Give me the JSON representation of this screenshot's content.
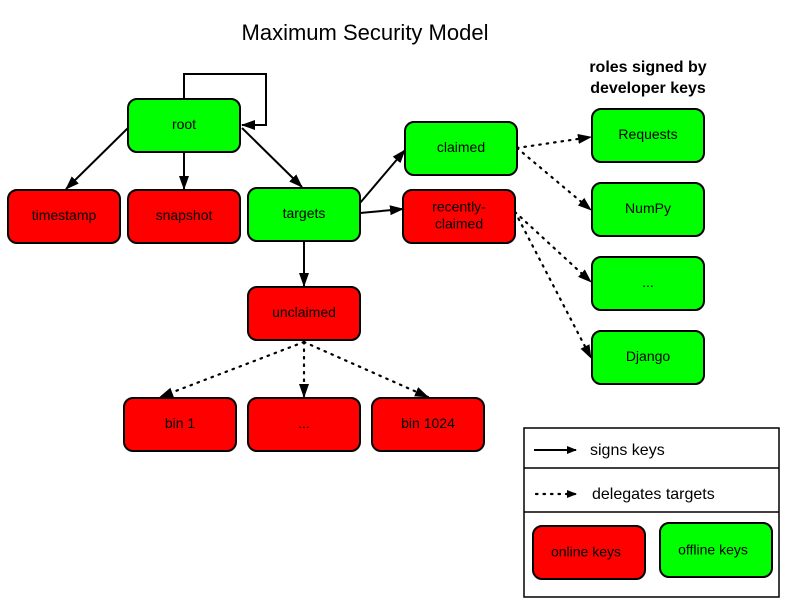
{
  "title": "Maximum Security Model",
  "side_heading": [
    "roles signed by",
    "developer keys"
  ],
  "colors": {
    "online": "#ff0000",
    "offline": "#00ff00"
  },
  "nodes": {
    "root": {
      "label": "root",
      "kind": "offline"
    },
    "timestamp": {
      "label": "timestamp",
      "kind": "online"
    },
    "snapshot": {
      "label": "snapshot",
      "kind": "online"
    },
    "targets": {
      "label": "targets",
      "kind": "offline"
    },
    "claimed": {
      "label": "claimed",
      "kind": "offline"
    },
    "recently_claimed": {
      "label": [
        "recently-",
        "claimed"
      ],
      "kind": "online"
    },
    "unclaimed": {
      "label": "unclaimed",
      "kind": "online"
    },
    "requests": {
      "label": "Requests",
      "kind": "offline"
    },
    "numpy": {
      "label": "NumPy",
      "kind": "offline"
    },
    "ellipsis_projects": {
      "label": "...",
      "kind": "offline"
    },
    "django": {
      "label": "Django",
      "kind": "offline"
    },
    "bin1": {
      "label": "bin 1",
      "kind": "online"
    },
    "ellipsis_bins": {
      "label": "...",
      "kind": "online"
    },
    "bin1024": {
      "label": "bin 1024",
      "kind": "online"
    }
  },
  "edges": [
    {
      "from": "root",
      "to": "root",
      "style": "signs"
    },
    {
      "from": "root",
      "to": "timestamp",
      "style": "signs"
    },
    {
      "from": "root",
      "to": "snapshot",
      "style": "signs"
    },
    {
      "from": "root",
      "to": "targets",
      "style": "signs"
    },
    {
      "from": "targets",
      "to": "claimed",
      "style": "signs"
    },
    {
      "from": "targets",
      "to": "recently_claimed",
      "style": "signs"
    },
    {
      "from": "targets",
      "to": "unclaimed",
      "style": "signs"
    },
    {
      "from": "claimed",
      "to": "requests",
      "style": "delegates"
    },
    {
      "from": "claimed",
      "to": "numpy",
      "style": "delegates"
    },
    {
      "from": "recently_claimed",
      "to": "ellipsis_projects",
      "style": "delegates"
    },
    {
      "from": "recently_claimed",
      "to": "django",
      "style": "delegates"
    },
    {
      "from": "unclaimed",
      "to": "bin1",
      "style": "delegates"
    },
    {
      "from": "unclaimed",
      "to": "ellipsis_bins",
      "style": "delegates"
    },
    {
      "from": "unclaimed",
      "to": "bin1024",
      "style": "delegates"
    }
  ],
  "legend": {
    "signs": "signs keys",
    "delegates": "delegates targets",
    "online": "online keys",
    "offline": "offline keys"
  }
}
